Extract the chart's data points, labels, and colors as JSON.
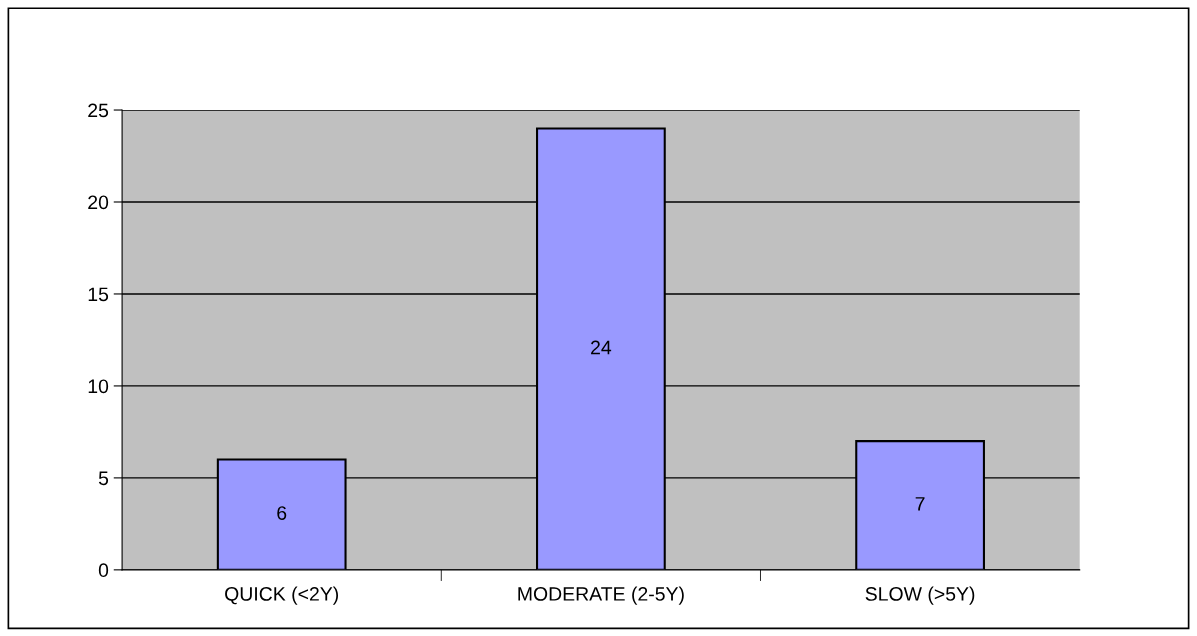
{
  "chart_data": {
    "type": "bar",
    "categories": [
      "QUICK (<2Y)",
      "MODERATE (2-5Y)",
      "SLOW (>5Y)"
    ],
    "values": [
      6,
      24,
      7
    ],
    "color": "#9999ff",
    "ylim": [
      0,
      25
    ],
    "yticks": [
      0,
      5,
      10,
      15,
      20,
      25
    ],
    "grid": "y",
    "data_labels": true,
    "legend": false
  }
}
